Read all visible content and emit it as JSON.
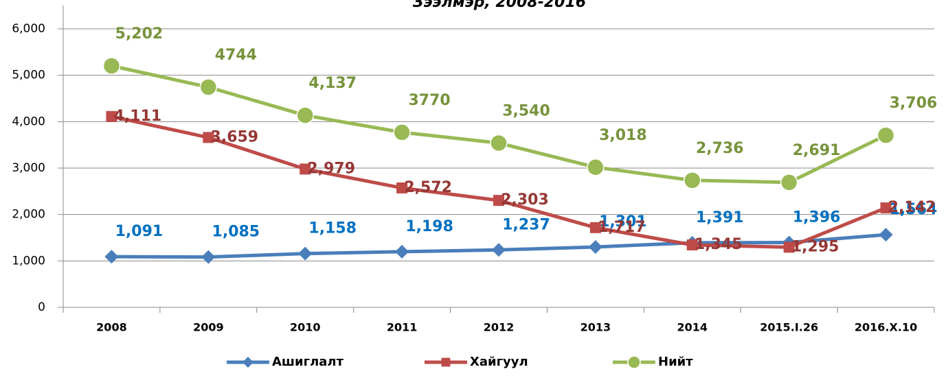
{
  "chart_data": {
    "type": "line",
    "title": "Зээлмэр, 2008-2016",
    "categories": [
      "2008",
      "2009",
      "2010",
      "2011",
      "2012",
      "2013",
      "2014",
      "2015.I.26",
      "2016.X.10"
    ],
    "series": [
      {
        "name": "Ашиглалт",
        "color": "#4a7ebb",
        "label_color": "#0070c0",
        "marker": "diamond",
        "values": [
          1091,
          1085,
          1158,
          1198,
          1237,
          1301,
          1391,
          1396,
          1564
        ],
        "value_labels": [
          "1,091",
          "1,085",
          "1,158",
          "1,198",
          "1,237",
          "1,301",
          "1,391",
          "1,396",
          "1,564"
        ]
      },
      {
        "name": "Хайгуул",
        "color": "#be4b48",
        "label_color": "#953735",
        "marker": "square",
        "values": [
          4111,
          3659,
          2979,
          2572,
          2303,
          1717,
          1345,
          1295,
          2142
        ],
        "value_labels": [
          "4,111",
          "3,659",
          "2,979",
          "2,572",
          "2,303",
          "1,717",
          "1,345",
          "1,295",
          "2,142"
        ]
      },
      {
        "name": "Нийт",
        "color": "#98b954",
        "label_color": "#77933c",
        "marker": "circle",
        "values": [
          5202,
          4744,
          4137,
          3770,
          3540,
          3018,
          2736,
          2691,
          3706
        ],
        "value_labels": [
          "5,202",
          "4744",
          "4,137",
          "3770",
          "3,540",
          "3,018",
          "2,736",
          "2,691",
          "3,706"
        ]
      }
    ],
    "ylim": [
      0,
      6000
    ],
    "yticks": [
      0,
      {
        "value": 1000,
        "label": "1,000"
      },
      {
        "value": 2000,
        "label": "2,000"
      },
      {
        "value": 3000,
        "label": "3,000"
      },
      {
        "value": 4000,
        "label": "4,000"
      },
      {
        "value": 5000,
        "label": "5,000"
      },
      {
        "value": 6000,
        "label": "6,000"
      }
    ],
    "grid": true,
    "legend": "bottom"
  }
}
